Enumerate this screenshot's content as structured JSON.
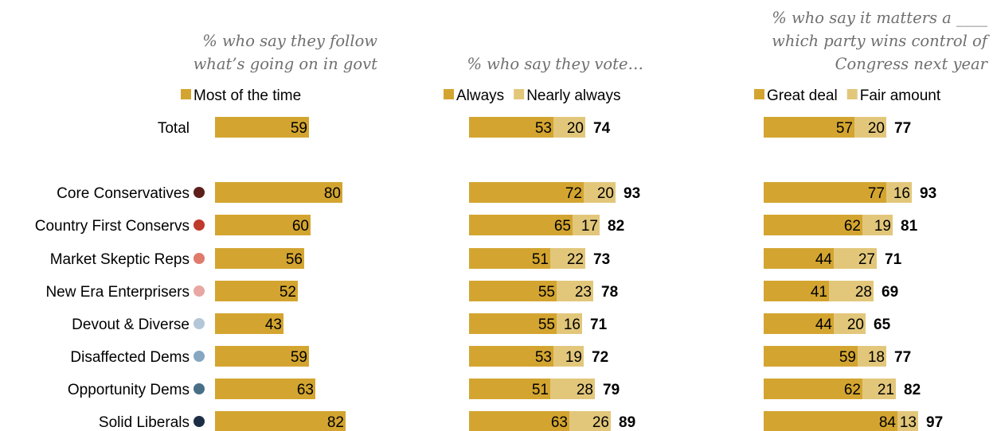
{
  "chart_data": {
    "type": "bar",
    "orientation": "horizontal",
    "stacked": true,
    "categories": [
      "Total",
      "Core Conservatives",
      "Country First Conservs",
      "Market Skeptic Reps",
      "New Era Enterprisers",
      "Devout & Diverse",
      "Disaffected Dems",
      "Opportunity Dems",
      "Solid Liberals"
    ],
    "category_dot_colors": [
      "",
      "#5c1f1a",
      "#c0392b",
      "#e07a6b",
      "#e8a7a2",
      "#b3c7d8",
      "#86a6c1",
      "#496f87",
      "#1c2e44"
    ],
    "colors": {
      "primary": "#d3a530",
      "secondary": "#e2c77b"
    },
    "panels": [
      {
        "title_lines": [
          "% who say they follow",
          "what’s going on in govt"
        ],
        "legend": [
          "Most of the time"
        ],
        "series": [
          {
            "name": "Most of the time",
            "values": [
              59,
              80,
              60,
              56,
              52,
              43,
              59,
              63,
              82
            ]
          }
        ],
        "totals": null
      },
      {
        "title_lines": [
          "% who say they vote…"
        ],
        "legend": [
          "Always",
          "Nearly always"
        ],
        "series": [
          {
            "name": "Always",
            "values": [
              53,
              72,
              65,
              51,
              55,
              55,
              53,
              51,
              63
            ]
          },
          {
            "name": "Nearly always",
            "values": [
              20,
              20,
              17,
              22,
              23,
              16,
              19,
              28,
              26
            ]
          }
        ],
        "totals": [
          74,
          93,
          82,
          73,
          78,
          71,
          72,
          79,
          89
        ]
      },
      {
        "title_lines": [
          "% who say it matters a ____",
          "which party wins control of",
          "Congress next year"
        ],
        "legend": [
          "Great deal",
          "Fair amount"
        ],
        "series": [
          {
            "name": "Great deal",
            "values": [
              57,
              77,
              62,
              44,
              41,
              44,
              59,
              62,
              84
            ]
          },
          {
            "name": "Fair amount",
            "values": [
              20,
              16,
              19,
              27,
              28,
              20,
              18,
              21,
              13
            ]
          }
        ],
        "totals": [
          77,
          93,
          81,
          71,
          69,
          65,
          77,
          82,
          97
        ]
      }
    ]
  }
}
